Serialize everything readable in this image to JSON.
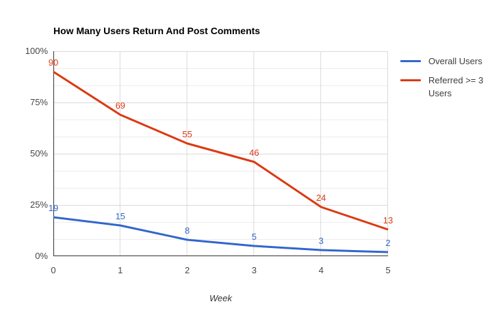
{
  "title": "How Many Users Return And Post Comments",
  "background": "#ffffff",
  "colors": {
    "series_blue": "#3366cc",
    "series_red": "#dc3912",
    "grid_major": "#d9d9d9",
    "grid_minor": "#ececec",
    "axis": "#333333",
    "tick_text": "#464646",
    "legend_text": "#3c3c3c",
    "title_text": "#000000"
  },
  "chart_data": {
    "type": "line",
    "title": "How Many Users Return And Post Comments",
    "xlabel": "Week",
    "ylabel": "",
    "x": [
      0,
      1,
      2,
      3,
      4,
      5
    ],
    "xlim": [
      0,
      5
    ],
    "ylim": [
      0,
      100
    ],
    "series": [
      {
        "name": "Overall Users",
        "color": "#3366cc",
        "values": [
          19,
          15,
          8,
          5,
          3,
          2
        ]
      },
      {
        "name": "Referred >= 3 Users",
        "color": "#dc3912",
        "values": [
          90,
          69,
          55,
          46,
          24,
          13
        ]
      }
    ],
    "x_ticks": [
      {
        "label": "0",
        "value": 0
      },
      {
        "label": "1",
        "value": 1
      },
      {
        "label": "2",
        "value": 2
      },
      {
        "label": "3",
        "value": 3
      },
      {
        "label": "4",
        "value": 4
      },
      {
        "label": "5",
        "value": 5
      }
    ],
    "y_ticks": [
      {
        "label": "0%",
        "value": 0
      },
      {
        "label": "25%",
        "value": 25
      },
      {
        "label": "50%",
        "value": 50
      },
      {
        "label": "75%",
        "value": 75
      },
      {
        "label": "100%",
        "value": 100
      }
    ],
    "grid": true,
    "minor_gridline_divisions_per_major": 3,
    "data_labels": true,
    "legend_position": "right"
  }
}
